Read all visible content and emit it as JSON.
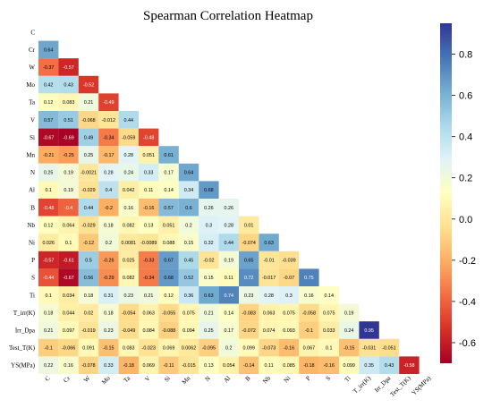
{
  "chart_data": {
    "type": "heatmap",
    "title": "Spearman Correlation Heatmap",
    "variables": [
      "C",
      "Cr",
      "W",
      "Mo",
      "Ta",
      "V",
      "Si",
      "Mn",
      "N",
      "Al",
      "B",
      "Nb",
      "Ni",
      "P",
      "S",
      "Ti",
      "T_irr(K)",
      "Irr_Dpa",
      "Test_T(K)",
      "YS(MPa)"
    ],
    "rows": [
      [],
      [
        "0.64"
      ],
      [
        "-0.37",
        "-0.57"
      ],
      [
        "0.42",
        "0.43",
        "-0.52"
      ],
      [
        "0.12",
        "0.083",
        "0.21",
        "-0.49"
      ],
      [
        "0.57",
        "0.51",
        "-0.068",
        "-0.012",
        "0.44"
      ],
      [
        "-0.67",
        "-0.69",
        "0.49",
        "-0.34",
        "-0.059",
        "-0.48"
      ],
      [
        "-0.21",
        "-0.25",
        "0.25",
        "-0.17",
        "0.28",
        "0.051",
        "0.61"
      ],
      [
        "0.25",
        "0.19",
        "-0.0021",
        "0.28",
        "0.24",
        "0.33",
        "0.17",
        "0.64"
      ],
      [
        "0.1",
        "0.19",
        "-0.029",
        "0.4",
        "0.042",
        "0.11",
        "0.14",
        "0.34",
        "0.68"
      ],
      [
        "-0.48",
        "-0.4",
        "0.44",
        "-0.2",
        "0.16",
        "-0.16",
        "0.57",
        "0.6",
        "0.26",
        "0.26"
      ],
      [
        "0.12",
        "0.064",
        "-0.029",
        "0.18",
        "0.082",
        "0.13",
        "0.051",
        "0.2",
        "0.3",
        "0.28",
        "0.01"
      ],
      [
        "0.026",
        "0.1",
        "-0.12",
        "0.2",
        "0.0081",
        "-0.0089",
        "0.088",
        "0.15",
        "0.32",
        "0.44",
        "-0.074",
        "0.63"
      ],
      [
        "-0.57",
        "-0.61",
        "0.5",
        "-0.26",
        "0.025",
        "-0.33",
        "0.67",
        "0.45",
        "-0.02",
        "0.19",
        "0.65",
        "-0.01",
        "-0.039"
      ],
      [
        "-0.44",
        "-0.67",
        "0.56",
        "-0.29",
        "0.082",
        "-0.34",
        "0.68",
        "0.52",
        "0.15",
        "0.11",
        "0.72",
        "-0.017",
        "-0.07",
        "0.75"
      ],
      [
        "0.1",
        "0.034",
        "0.18",
        "0.31",
        "0.23",
        "0.21",
        "0.12",
        "0.36",
        "0.63",
        "0.74",
        "0.23",
        "0.28",
        "0.3",
        "0.16",
        "0.14"
      ],
      [
        "0.18",
        "0.044",
        "0.02",
        "0.18",
        "-0.054",
        "0.063",
        "-0.055",
        "0.075",
        "0.21",
        "0.14",
        "-0.083",
        "0.063",
        "0.075",
        "-0.058",
        "0.075",
        "0.19"
      ],
      [
        "0.21",
        "0.097",
        "-0.019",
        "0.23",
        "-0.049",
        "0.084",
        "-0.088",
        "0.094",
        "0.25",
        "0.17",
        "-0.072",
        "0.074",
        "0.093",
        "-0.1",
        "0.033",
        "0.24",
        "0.95"
      ],
      [
        "-0.1",
        "-0.066",
        "0.091",
        "-0.15",
        "0.083",
        "-0.023",
        "0.069",
        "0.0062",
        "-0.095",
        "0.2",
        "0.099",
        "-0.073",
        "-0.16",
        "0.067",
        "0.1",
        "-0.15",
        "-0.031",
        "-0.051"
      ],
      [
        "0.22",
        "0.16",
        "-0.078",
        "0.33",
        "-0.18",
        "0.069",
        "-0.11",
        "-0.015",
        "0.13",
        "0.054",
        "-0.14",
        "0.11",
        "0.085",
        "-0.18",
        "-0.16",
        "0.099",
        "0.35",
        "0.43",
        "-0.58"
      ]
    ],
    "mask": "upper triangle including diagonal",
    "colormap": "RdYlBu",
    "vmin": -0.7,
    "vmax": 0.95,
    "colorbar_ticks": [
      "0.8",
      "0.6",
      "0.4",
      "0.2",
      "0.0",
      "-0.2",
      "-0.4",
      "-0.6"
    ],
    "colorbar_tick_values": [
      0.8,
      0.6,
      0.4,
      0.2,
      0.0,
      -0.2,
      -0.4,
      -0.6
    ]
  }
}
